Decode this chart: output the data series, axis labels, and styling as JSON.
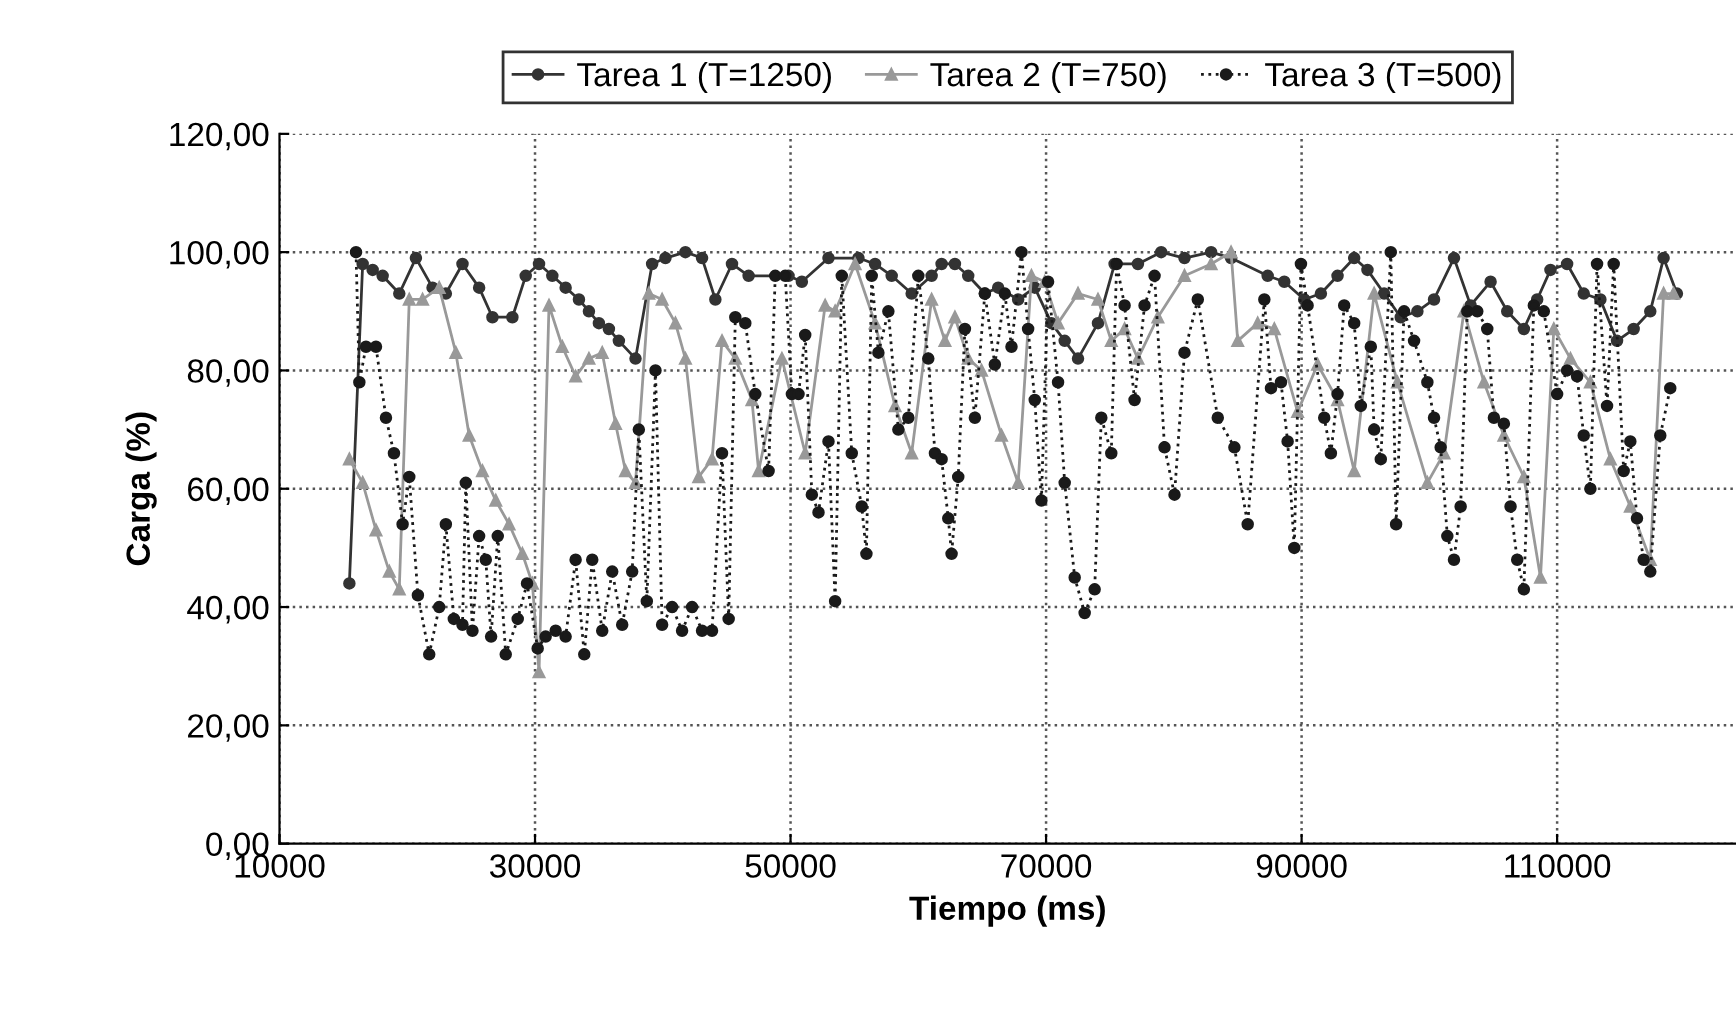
{
  "chart_data": {
    "type": "line",
    "xlabel": "Tiempo (ms)",
    "ylabel": "Carga (%)",
    "xlim": [
      10000,
      124000
    ],
    "xticks": [
      10000,
      30000,
      50000,
      70000,
      90000,
      110000
    ],
    "ylim": [
      0,
      120
    ],
    "yticks": [
      {
        "value": 0,
        "label": "0,00"
      },
      {
        "value": 20,
        "label": "20,00"
      },
      {
        "value": 40,
        "label": "40,00"
      },
      {
        "value": 60,
        "label": "60,00"
      },
      {
        "value": 80,
        "label": "80,00"
      },
      {
        "value": 100,
        "label": "100,00"
      },
      {
        "value": 120,
        "label": "120,00"
      }
    ],
    "grid": true,
    "legend": "top",
    "series": [
      {
        "name": "Tarea 1 (T=1250)",
        "color": "#333333",
        "marker": "circle",
        "line_style": "solid",
        "x": [
          15469,
          16510,
          17292,
          18073,
          19375,
          20677,
          21979,
          23021,
          24323,
          25625,
          26667,
          28229,
          29271,
          30313,
          31354,
          32396,
          33438,
          34219,
          35000,
          35781,
          36563,
          37865,
          39167,
          40208,
          41771,
          43073,
          44115,
          45417,
          46719,
          49844,
          50885,
          52969,
          55313,
          56615,
          57917,
          59479,
          61042,
          61823,
          62865,
          63906,
          65208,
          66250,
          67813,
          69115,
          70417,
          71458,
          72500,
          74063,
          75365,
          77188,
          79010,
          80833,
          82917,
          84479,
          87344,
          88646,
          90208,
          91510,
          92813,
          94115,
          95156,
          96458,
          97760,
          99063,
          100365,
          101927,
          103229,
          104792,
          106094,
          107396,
          108438,
          109479,
          110781,
          112083,
          113385,
          114688,
          115990,
          117290,
          118333,
          119375
        ],
        "values": [
          44,
          98,
          97,
          96,
          93,
          99,
          94,
          93,
          98,
          94,
          89,
          89,
          96,
          98,
          96,
          94,
          92,
          90,
          88,
          87,
          85,
          82,
          98,
          99,
          100,
          99,
          92,
          98,
          96,
          96,
          95,
          99,
          99,
          98,
          96,
          93,
          96,
          98,
          98,
          96,
          93,
          94,
          92,
          94,
          88,
          85,
          82,
          88,
          98,
          98,
          100,
          99,
          100,
          99,
          96,
          95,
          92,
          93,
          96,
          99,
          97,
          93,
          89,
          90,
          92,
          99,
          91,
          95,
          90,
          87,
          92,
          97,
          98,
          93,
          92,
          85,
          87,
          90,
          99,
          93
        ]
      },
      {
        "name": "Tarea 2 (T=750)",
        "color": "#999999",
        "marker": "triangle",
        "line_style": "solid",
        "x": [
          15469,
          16510,
          17552,
          18594,
          19375,
          20156,
          21198,
          22500,
          23802,
          24844,
          25885,
          26927,
          27969,
          29010,
          29792,
          30313,
          31094,
          32135,
          33177,
          34219,
          35260,
          36302,
          37083,
          37865,
          38906,
          39948,
          40990,
          41771,
          42813,
          43854,
          44635,
          45677,
          46979,
          47500,
          49323,
          51146,
          52708,
          53490,
          55052,
          56615,
          58177,
          59479,
          61042,
          62083,
          62865,
          63906,
          64948,
          66510,
          67813,
          68854,
          69896,
          70938,
          72500,
          74063,
          75104,
          76146,
          77188,
          78750,
          80833,
          82917,
          84479,
          85000,
          86563,
          87865,
          89688,
          91250,
          92813,
          94115,
          95677,
          97500,
          99844,
          101146,
          102708,
          104271,
          105833,
          107396,
          108698,
          109740,
          111042,
          112604,
          114167,
          115729,
          117292,
          118333,
          119115
        ],
        "values": [
          65,
          61,
          53,
          46,
          43,
          92,
          92,
          94,
          83,
          69,
          63,
          58,
          54,
          49,
          44,
          29,
          91,
          84,
          79,
          82,
          83,
          71,
          63,
          61,
          93,
          92,
          88,
          82,
          62,
          65,
          85,
          82,
          75,
          63,
          82,
          66,
          91,
          90,
          98,
          88,
          74,
          66,
          92,
          85,
          89,
          82,
          80,
          69,
          61,
          96,
          95,
          88,
          93,
          92,
          85,
          87,
          82,
          89,
          96,
          98,
          100,
          85,
          88,
          87,
          73,
          81,
          75,
          63,
          93,
          78,
          61,
          66,
          90,
          78,
          69,
          62,
          45,
          87,
          82,
          78,
          65,
          57,
          48,
          93,
          93
        ]
      },
      {
        "name": "Tarea 3 (T=500)",
        "color": "#1a1a1a",
        "marker": "circle",
        "line_style": "dotted",
        "x": [
          15990,
          16250,
          16771,
          17552,
          18333,
          18958,
          19635,
          20156,
          20833,
          21719,
          22500,
          23021,
          23646,
          24323,
          24583,
          25104,
          25625,
          26146,
          26563,
          27083,
          27708,
          28646,
          29375,
          30208,
          30833,
          31615,
          32396,
          33177,
          33854,
          34479,
          35260,
          36042,
          36823,
          37604,
          38125,
          38750,
          39427,
          39948,
          40729,
          41510,
          42292,
          43073,
          43854,
          44635,
          45156,
          45677,
          46458,
          47240,
          48281,
          48802,
          49583,
          50104,
          50625,
          51146,
          51667,
          52188,
          52969,
          53490,
          54010,
          54792,
          55573,
          55938,
          56354,
          56875,
          57656,
          58438,
          59219,
          60000,
          60781,
          61302,
          61823,
          62344,
          62604,
          63125,
          63646,
          64427,
          65208,
          65990,
          66771,
          67292,
          68073,
          68594,
          69115,
          69635,
          70156,
          70938,
          71458,
          72240,
          73021,
          73802,
          74323,
          75104,
          75521,
          76146,
          76927,
          77708,
          78490,
          79271,
          80052,
          80833,
          81875,
          83438,
          84740,
          85781,
          87083,
          87604,
          88385,
          88906,
          89427,
          89948,
          90469,
          91771,
          92292,
          92813,
          93333,
          94115,
          94635,
          95417,
          95677,
          96198,
          96979,
          97396,
          98021,
          98802,
          99844,
          100365,
          100885,
          101406,
          101927,
          102448,
          102969,
          103750,
          104531,
          105052,
          105833,
          106354,
          106875,
          107396,
          108177,
          108958,
          110000,
          110781,
          111563,
          112083,
          112604,
          113125,
          113906,
          114427,
          115208,
          115729,
          116250,
          116771,
          117292,
          118073,
          118854
        ],
        "values": [
          100,
          78,
          84,
          84,
          72,
          66,
          54,
          62,
          42,
          32,
          40,
          54,
          38,
          37,
          61,
          36,
          52,
          48,
          35,
          52,
          32,
          38,
          44,
          33,
          35,
          36,
          35,
          48,
          32,
          48,
          36,
          46,
          37,
          46,
          70,
          41,
          80,
          37,
          40,
          36,
          40,
          36,
          36,
          66,
          38,
          89,
          88,
          76,
          63,
          96,
          96,
          76,
          76,
          86,
          59,
          56,
          68,
          41,
          96,
          66,
          57,
          49,
          96,
          83,
          90,
          70,
          72,
          96,
          82,
          66,
          65,
          55,
          49,
          62,
          87,
          72,
          93,
          81,
          93,
          84,
          100,
          87,
          75,
          58,
          95,
          78,
          61,
          45,
          39,
          43,
          72,
          66,
          98,
          91,
          75,
          91,
          96,
          67,
          59,
          83,
          92,
          72,
          67,
          54,
          92,
          77,
          78,
          68,
          50,
          98,
          91,
          72,
          66,
          76,
          91,
          88,
          74,
          84,
          70,
          65,
          100,
          54,
          90,
          85,
          78,
          72,
          67,
          52,
          48,
          57,
          90,
          90,
          87,
          72,
          71,
          57,
          48,
          43,
          91,
          90,
          76,
          80,
          79,
          69,
          60,
          98,
          74,
          98,
          63,
          68,
          55,
          48,
          46,
          69,
          77
        ]
      }
    ]
  }
}
